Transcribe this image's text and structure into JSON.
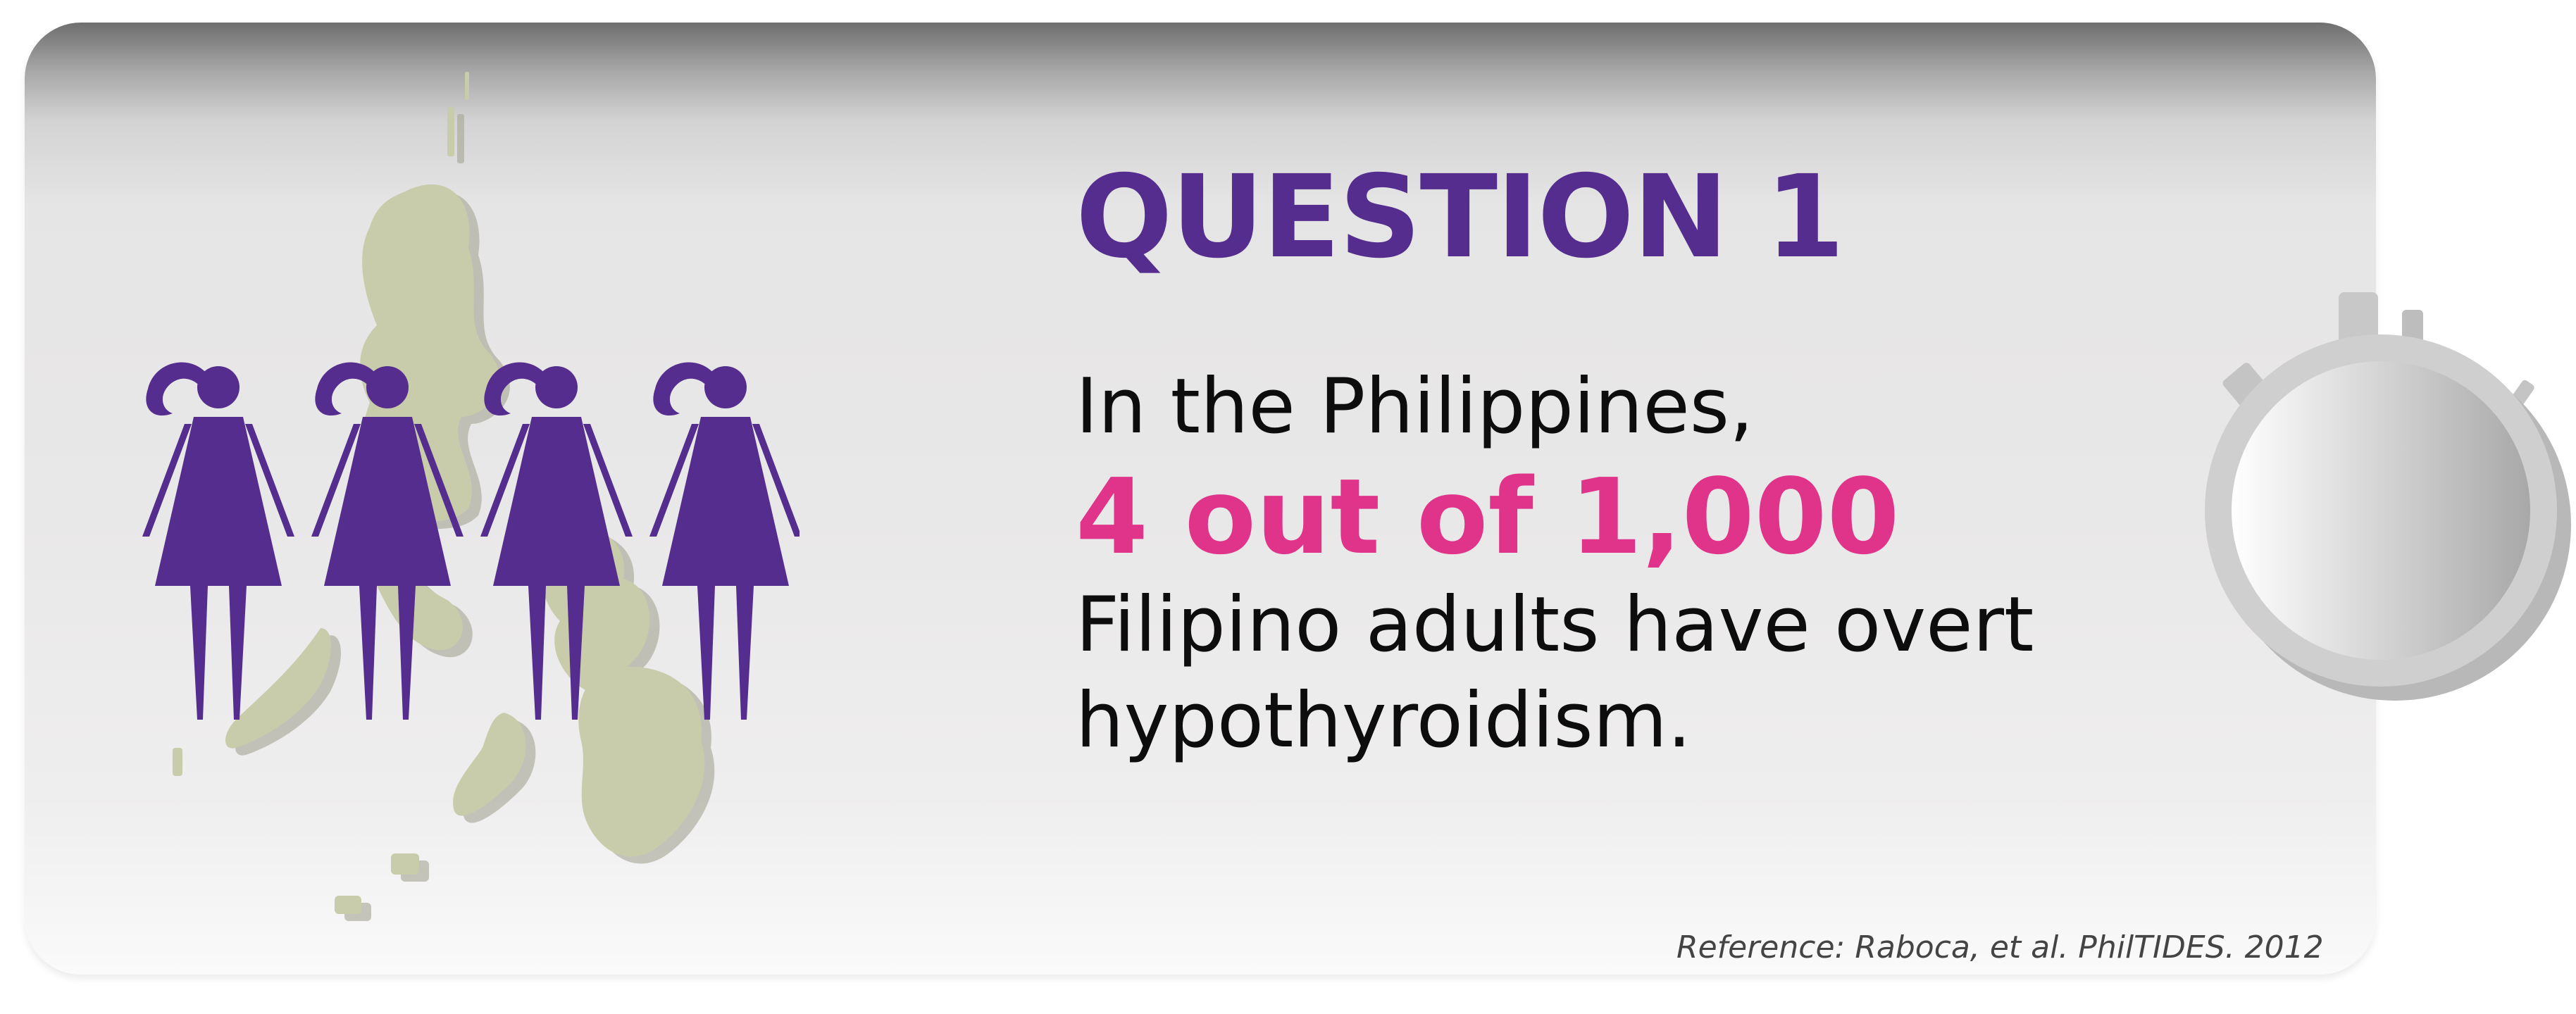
{
  "slide": {
    "heading": "QUESTION 1",
    "intro": "In the Philippines,",
    "statistic": "4 out of 1,000",
    "body_line_1": "Filipino adults have overt",
    "body_line_2": "hypothyroidism.",
    "reference": "Reference: Raboca, et al.  PhilTIDES. 2012"
  },
  "icons": {
    "map": "philippines-map-icon",
    "people": [
      "woman-figure-icon",
      "woman-figure-icon",
      "woman-figure-icon",
      "woman-figure-icon"
    ],
    "timer": "stopwatch-icon"
  },
  "colors": {
    "heading": "#542d8e",
    "statistic": "#e0348a",
    "figure": "#542d8e",
    "map": "#c9ccab"
  }
}
